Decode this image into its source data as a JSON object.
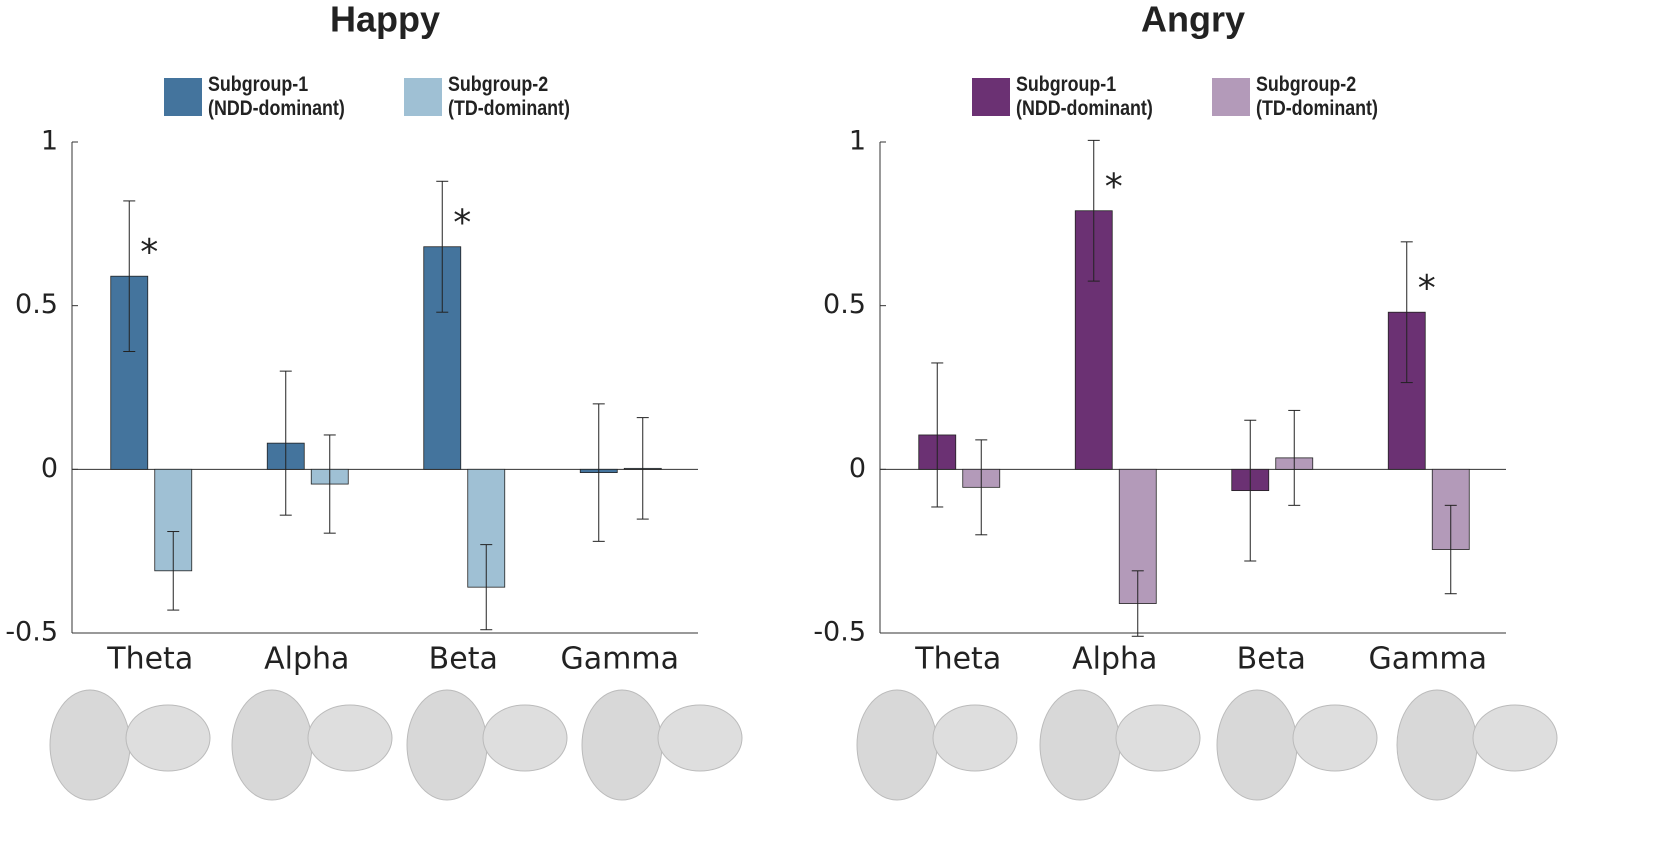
{
  "chart_data": [
    {
      "type": "bar",
      "title": "Happy",
      "categories": [
        "Theta",
        "Alpha",
        "Beta",
        "Gamma"
      ],
      "series": [
        {
          "name": "Subgroup-1\n(NDD-dominant)",
          "color": "#44749d",
          "values": [
            0.59,
            0.08,
            0.68,
            -0.01
          ],
          "errors": [
            0.23,
            0.22,
            0.2,
            0.21
          ]
        },
        {
          "name": "Subgroup-2\n(TD-dominant)",
          "color": "#9fc0d4",
          "values": [
            -0.31,
            -0.045,
            -0.36,
            0.003
          ],
          "errors": [
            0.12,
            0.15,
            0.13,
            0.155
          ]
        }
      ],
      "annotations": [
        {
          "label": "*",
          "series": 0,
          "category_index": 0
        },
        {
          "label": "*",
          "series": 0,
          "category_index": 2
        }
      ],
      "ylim": [
        -0.5,
        1
      ],
      "yticks": [
        -0.5,
        0,
        0.5,
        1
      ]
    },
    {
      "type": "bar",
      "title": "Angry",
      "categories": [
        "Theta",
        "Alpha",
        "Beta",
        "Gamma"
      ],
      "series": [
        {
          "name": "Subgroup-1\n(NDD-dominant)",
          "color": "#6b3173",
          "values": [
            0.105,
            0.79,
            -0.065,
            0.48
          ],
          "errors": [
            0.22,
            0.215,
            0.215,
            0.215
          ]
        },
        {
          "name": "Subgroup-2\n(TD-dominant)",
          "color": "#b39ab9",
          "values": [
            -0.055,
            -0.41,
            0.035,
            -0.245
          ],
          "errors": [
            0.145,
            0.1,
            0.145,
            0.135
          ]
        }
      ],
      "annotations": [
        {
          "label": "*",
          "series": 0,
          "category_index": 1
        },
        {
          "label": "*",
          "series": 0,
          "category_index": 3
        }
      ],
      "ylim": [
        -0.5,
        1
      ],
      "yticks": [
        -0.5,
        0,
        0.5,
        1
      ]
    }
  ]
}
